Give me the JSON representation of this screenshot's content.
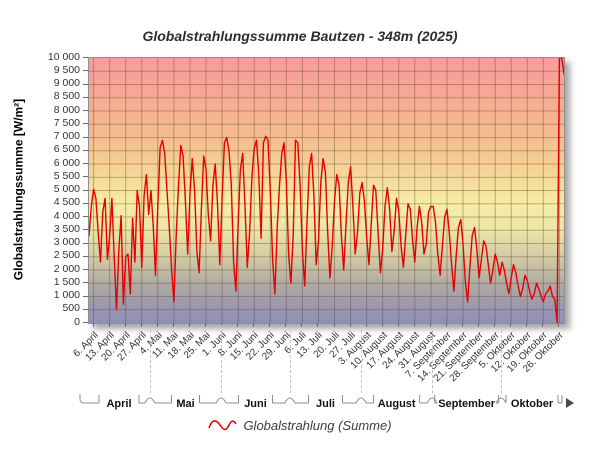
{
  "chart_data": {
    "type": "line",
    "title": "Globalstrahlungssumme Bautzen - 348m (2025)",
    "ylabel": "Globalstrahlungssumme [W/m²]",
    "ylim": [
      0,
      10000
    ],
    "y_tick_step": 500,
    "grid": true,
    "legend_position": "bottom",
    "x_ticks": [
      {
        "d": 2,
        "label": "6. April"
      },
      {
        "d": 9,
        "label": "13. April"
      },
      {
        "d": 16,
        "label": "20. April"
      },
      {
        "d": 23,
        "label": "27. April"
      },
      {
        "d": 30,
        "label": "4. Mai"
      },
      {
        "d": 37,
        "label": "11. Mai"
      },
      {
        "d": 44,
        "label": "18. Mai"
      },
      {
        "d": 51,
        "label": "25. Mai"
      },
      {
        "d": 58,
        "label": "1. Juni"
      },
      {
        "d": 65,
        "label": "8. Juni"
      },
      {
        "d": 72,
        "label": "15. Juni"
      },
      {
        "d": 79,
        "label": "22. Juni"
      },
      {
        "d": 86,
        "label": "29. Juni"
      },
      {
        "d": 93,
        "label": "6. Juli"
      },
      {
        "d": 100,
        "label": "13. Juli"
      },
      {
        "d": 107,
        "label": "20. Juli"
      },
      {
        "d": 114,
        "label": "27. Juli"
      },
      {
        "d": 121,
        "label": "3. August"
      },
      {
        "d": 128,
        "label": "10. August"
      },
      {
        "d": 135,
        "label": "17. August"
      },
      {
        "d": 142,
        "label": "24. August"
      },
      {
        "d": 149,
        "label": "31. August"
      },
      {
        "d": 156,
        "label": "7. September"
      },
      {
        "d": 163,
        "label": "14. September"
      },
      {
        "d": 170,
        "label": "21. September"
      },
      {
        "d": 177,
        "label": "28. September"
      },
      {
        "d": 184,
        "label": "5. Oktober"
      },
      {
        "d": 191,
        "label": "12. Oktober"
      },
      {
        "d": 198,
        "label": "19. Oktober"
      },
      {
        "d": 205,
        "label": "26. Oktober"
      }
    ],
    "month_bands": [
      {
        "label": "April",
        "start": 0,
        "end": 27
      },
      {
        "label": "Mai",
        "start": 27,
        "end": 58
      },
      {
        "label": "Juni",
        "start": 58,
        "end": 88
      },
      {
        "label": "Juli",
        "start": 88,
        "end": 119
      },
      {
        "label": "August",
        "start": 119,
        "end": 150
      },
      {
        "label": "September",
        "start": 150,
        "end": 180
      },
      {
        "label": "Oktober",
        "start": 180,
        "end": 207
      }
    ],
    "series": [
      {
        "name": "Globalstrahlung (Summe)",
        "color": "#e60000",
        "values": [
          3300,
          4400,
          5050,
          4700,
          3400,
          2300,
          4200,
          4700,
          2400,
          3300,
          4700,
          2500,
          500,
          2700,
          4050,
          700,
          2500,
          2600,
          1100,
          3950,
          2300,
          5000,
          4400,
          2100,
          4800,
          5600,
          4100,
          5000,
          3600,
          1800,
          4400,
          6600,
          6900,
          6400,
          5000,
          3600,
          2000,
          800,
          3300,
          5200,
          6700,
          6300,
          4600,
          2600,
          4900,
          6200,
          5000,
          2700,
          1900,
          4300,
          6300,
          5800,
          4100,
          3100,
          5200,
          6000,
          4500,
          2200,
          4700,
          6800,
          7000,
          6500,
          5200,
          2300,
          1200,
          3800,
          5800,
          6400,
          4400,
          2100,
          3400,
          5500,
          6600,
          6900,
          5600,
          3200,
          6800,
          7050,
          6900,
          5000,
          2400,
          1100,
          3600,
          5200,
          6400,
          6800,
          5400,
          2600,
          1500,
          3300,
          6900,
          6800,
          5200,
          2700,
          1400,
          3800,
          5900,
          6400,
          4800,
          2200,
          3100,
          5300,
          6200,
          5700,
          3500,
          1700,
          2900,
          4600,
          5600,
          5200,
          3300,
          2000,
          3700,
          5300,
          5900,
          4400,
          2600,
          3400,
          4900,
          5300,
          4600,
          3200,
          2200,
          3700,
          5200,
          5000,
          3400,
          1900,
          2800,
          4400,
          5100,
          4300,
          2700,
          3500,
          4700,
          4200,
          2900,
          2100,
          3300,
          4500,
          4300,
          3100,
          2300,
          3600,
          4400,
          3800,
          2600,
          3000,
          4200,
          4400,
          4400,
          3800,
          2600,
          1800,
          2900,
          4000,
          4300,
          3400,
          2200,
          1200,
          2500,
          3600,
          3900,
          3000,
          1600,
          800,
          2100,
          3300,
          3600,
          2800,
          1700,
          2400,
          3100,
          2900,
          2200,
          1500,
          2000,
          2600,
          2300,
          1800,
          2300,
          2000,
          1500,
          1100,
          1700,
          2200,
          1900,
          1400,
          1000,
          1300,
          1800,
          1600,
          1200,
          900,
          1100,
          1500,
          1300,
          1000,
          800,
          1100,
          1200,
          1400,
          1000,
          900,
          0,
          10000,
          10000,
          9400
        ]
      }
    ]
  },
  "colors": {
    "line": "#e60000",
    "plot_border": "#8f8f8f",
    "grid": "rgba(90,62,50,0.38)",
    "axis_text": "#333333",
    "month_bracket": "#8c8c8c",
    "gradient": [
      [
        0,
        "#f79c9c"
      ],
      [
        0.12,
        "#f7a694"
      ],
      [
        0.3,
        "#f5bd8e"
      ],
      [
        0.45,
        "#f6d998"
      ],
      [
        0.55,
        "#f7eda6"
      ],
      [
        0.65,
        "#ece5a5"
      ],
      [
        0.75,
        "#d3cca3"
      ],
      [
        0.85,
        "#b0aba3"
      ],
      [
        0.94,
        "#9a98ad"
      ],
      [
        1,
        "#8d90ba"
      ]
    ]
  }
}
